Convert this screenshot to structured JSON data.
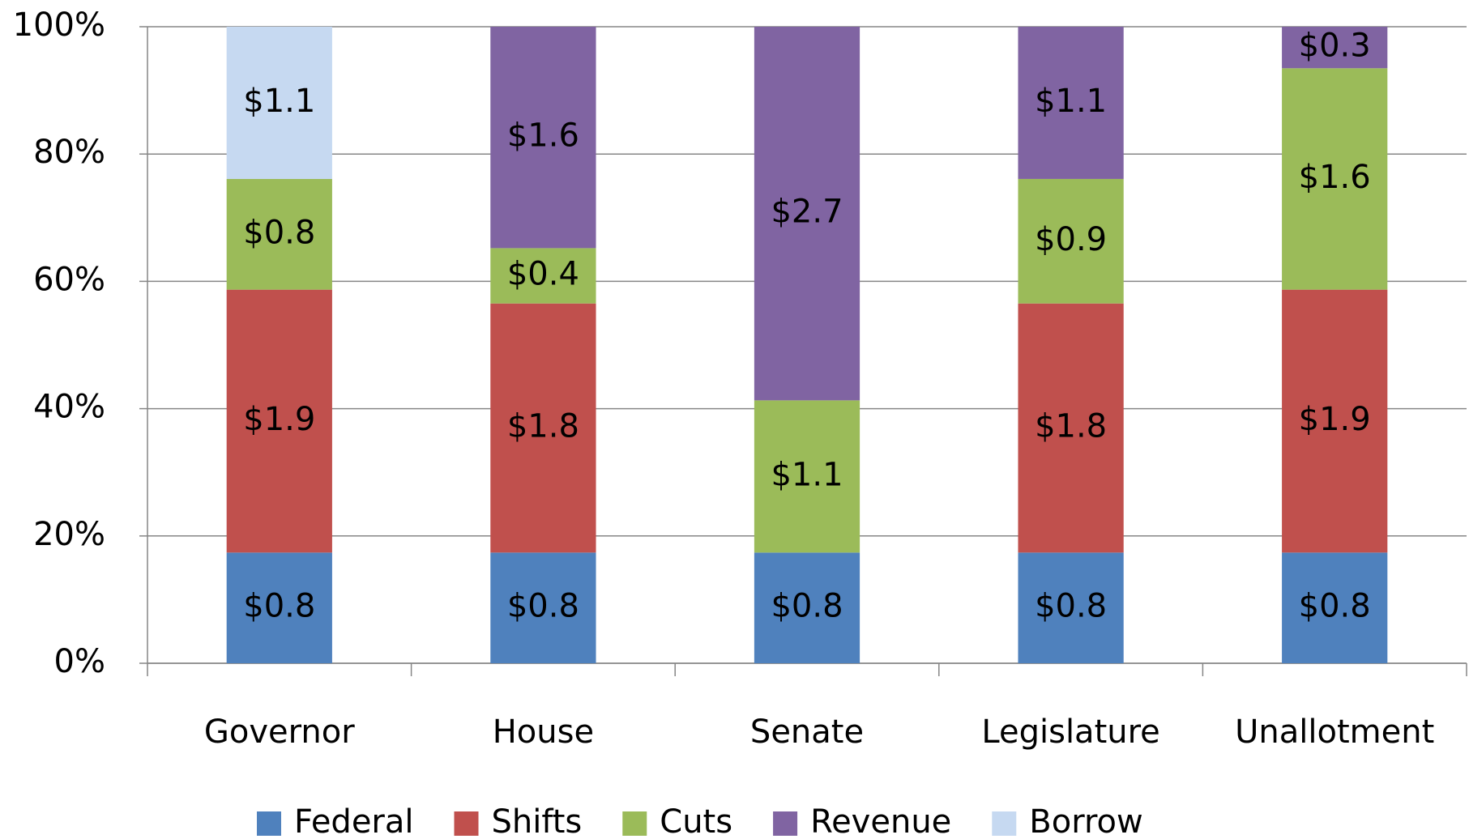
{
  "chart_data": {
    "type": "bar",
    "stacked": "percent",
    "categories": [
      "Governor",
      "House",
      "Senate",
      "Legislature",
      "Unallotment"
    ],
    "series": [
      {
        "name": "Federal",
        "color": "#4f81bd",
        "values": [
          0.8,
          0.8,
          0.8,
          0.8,
          0.8
        ],
        "value_labels": [
          "$0.8",
          "$0.8",
          "$0.8",
          "$0.8",
          "$0.8"
        ]
      },
      {
        "name": "Shifts",
        "color": "#c0504d",
        "values": [
          1.9,
          1.8,
          null,
          1.8,
          1.9
        ],
        "value_labels": [
          "$1.9",
          "$1.8",
          null,
          "$1.8",
          "$1.9"
        ]
      },
      {
        "name": "Cuts",
        "color": "#9bbb59",
        "values": [
          0.8,
          0.4,
          1.1,
          0.9,
          1.6
        ],
        "value_labels": [
          "$0.8",
          "$0.4",
          "$1.1",
          "$0.9",
          "$1.6"
        ]
      },
      {
        "name": "Revenue",
        "color": "#8064a2",
        "values": [
          null,
          1.6,
          2.7,
          1.1,
          0.3
        ],
        "value_labels": [
          null,
          "$1.6",
          "$2.7",
          "$1.1",
          "$0.3"
        ]
      },
      {
        "name": "Borrow",
        "color": "#c6d9f1",
        "values": [
          1.1,
          null,
          null,
          null,
          null
        ],
        "value_labels": [
          "$1.1",
          null,
          null,
          null,
          null
        ]
      }
    ],
    "ylim": [
      0,
      100
    ],
    "yticks": [
      {
        "value": 0,
        "label": "0%"
      },
      {
        "value": 20,
        "label": "20%"
      },
      {
        "value": 40,
        "label": "40%"
      },
      {
        "value": 60,
        "label": "60%"
      },
      {
        "value": 80,
        "label": "80%"
      },
      {
        "value": 100,
        "label": "100%"
      }
    ],
    "grid": true,
    "legend": "bottom"
  }
}
